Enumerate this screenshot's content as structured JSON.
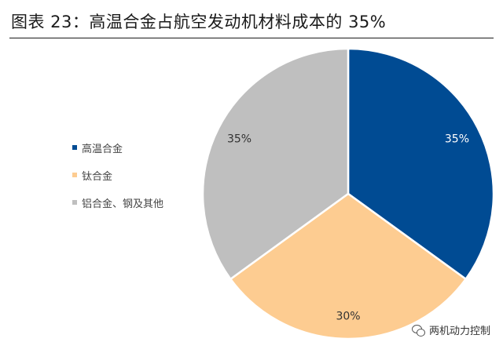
{
  "title": "图表 23：高温合金占航空发动机材料成本的 35%",
  "watermark": {
    "icon": "wechat-icon",
    "text": "两机动力控制"
  },
  "chart_data": {
    "type": "pie",
    "slices": [
      {
        "name": "高温合金",
        "value": 35,
        "label": "35%",
        "color": "#004b93"
      },
      {
        "name": "钛合金",
        "value": 30,
        "label": "30%",
        "color": "#fdcc91"
      },
      {
        "name": "铝合金、钢及其他",
        "value": 35,
        "label": "35%",
        "color": "#bfbfbf"
      }
    ],
    "legend_position": "left"
  }
}
